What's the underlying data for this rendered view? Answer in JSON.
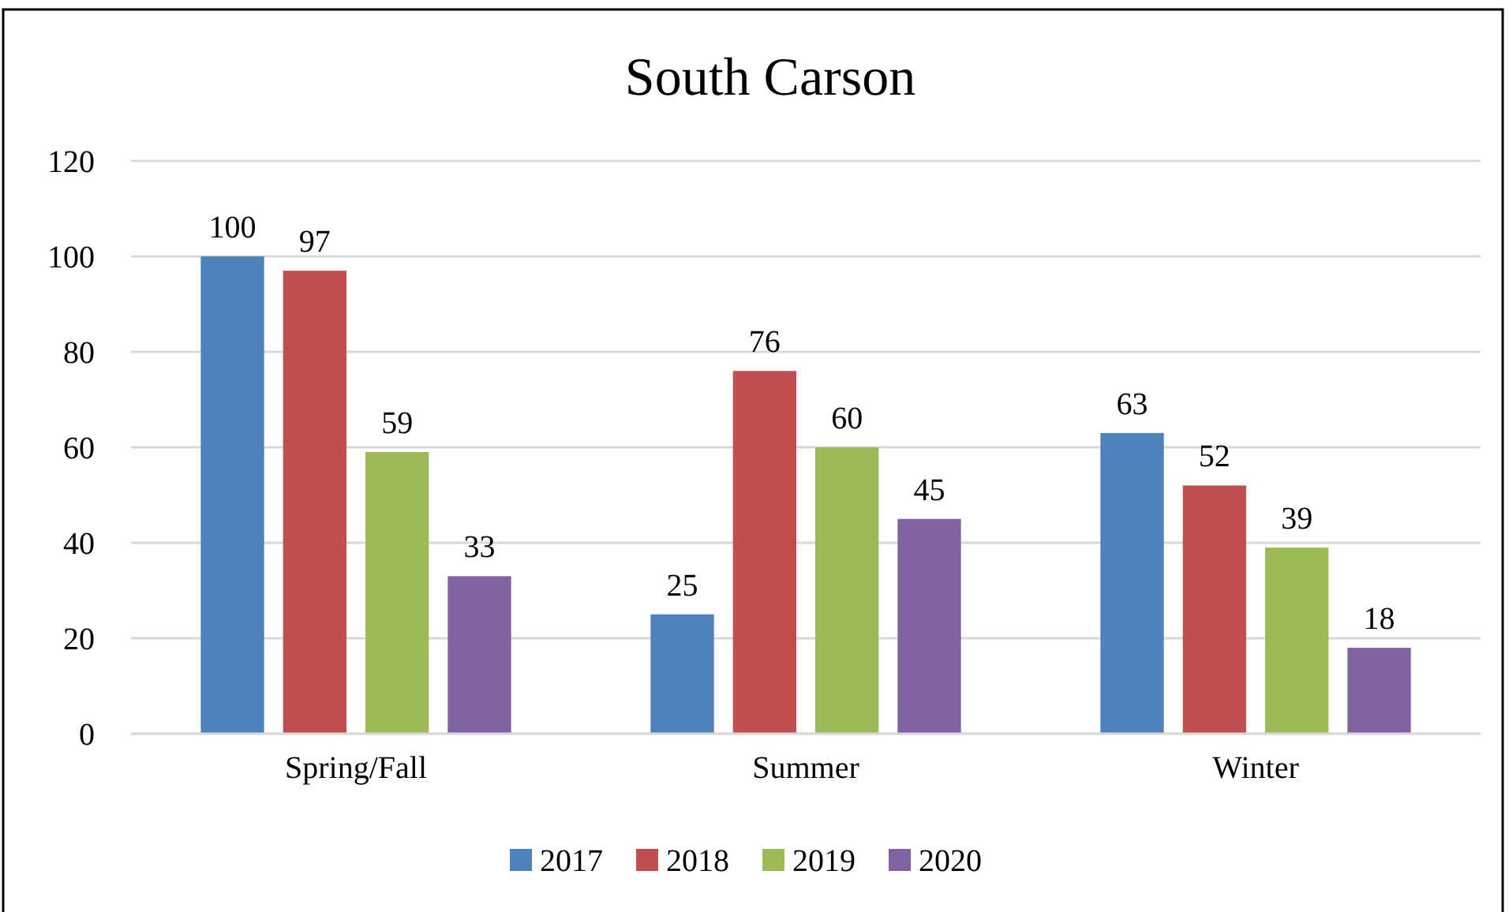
{
  "chart_data": {
    "type": "bar",
    "title": "South Carson",
    "categories": [
      "Spring/Fall",
      "Summer",
      "Winter"
    ],
    "series": [
      {
        "name": "2017",
        "color": "#4f81bd",
        "values": [
          100,
          25,
          63
        ]
      },
      {
        "name": "2018",
        "color": "#c0504d",
        "values": [
          97,
          76,
          52
        ]
      },
      {
        "name": "2019",
        "color": "#9bbb59",
        "values": [
          59,
          60,
          39
        ]
      },
      {
        "name": "2020",
        "color": "#8064a2",
        "values": [
          33,
          45,
          18
        ]
      }
    ],
    "ylim": [
      0,
      120
    ],
    "yticks": [
      0,
      20,
      40,
      60,
      80,
      100,
      120
    ],
    "grid": "y",
    "legend": "bottom",
    "data_labels": true
  }
}
